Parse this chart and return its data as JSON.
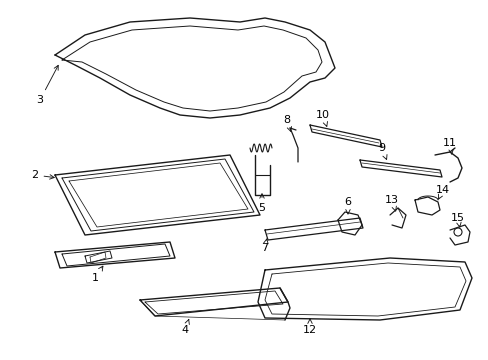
{
  "bg_color": "#ffffff",
  "line_color": "#1a1a1a",
  "text_color": "#000000",
  "lw": 1.0
}
